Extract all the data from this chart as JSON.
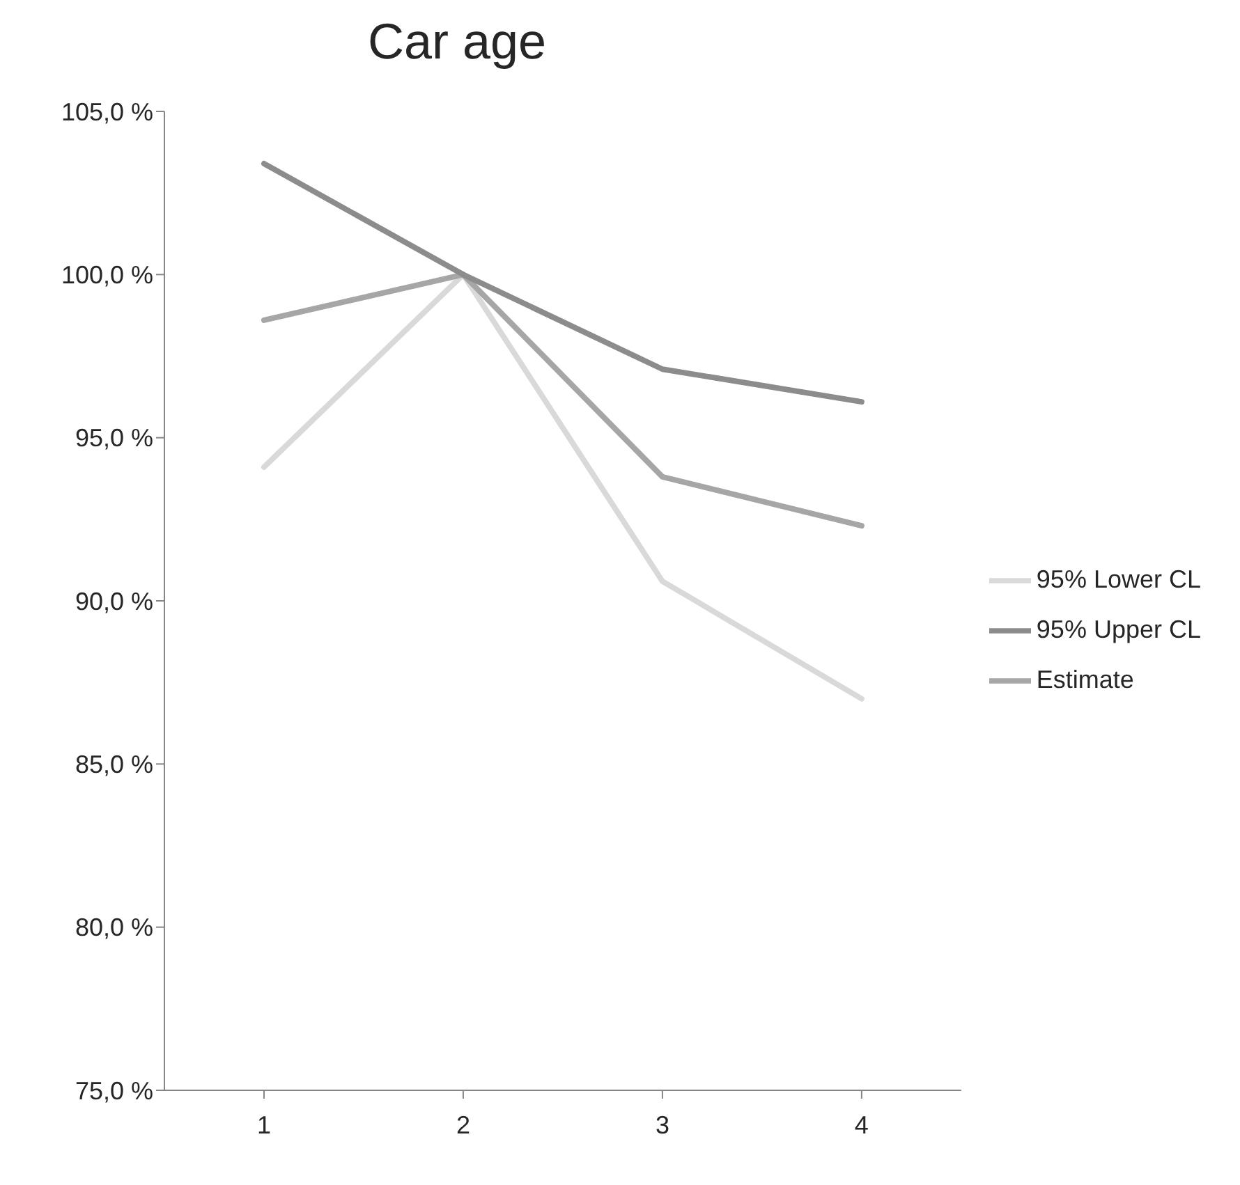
{
  "chart_data": {
    "type": "line",
    "title": "Car age",
    "categories": [
      "1",
      "2",
      "3",
      "4"
    ],
    "series": [
      {
        "name": "95% Lower CL",
        "color": "#d9d9d9",
        "values": [
          94.1,
          100.0,
          90.6,
          87.0
        ]
      },
      {
        "name": "Estimate",
        "color": "#a6a6a6",
        "values": [
          98.6,
          100.0,
          93.8,
          92.3
        ]
      },
      {
        "name": "95% Upper CL",
        "color": "#8c8c8c",
        "values": [
          103.4,
          100.0,
          97.1,
          96.1
        ]
      }
    ],
    "ylim": [
      75,
      105
    ],
    "yticks": [
      {
        "value": 75,
        "label": "75,0 %"
      },
      {
        "value": 80,
        "label": "80,0 %"
      },
      {
        "value": 85,
        "label": "85,0 %"
      },
      {
        "value": 90,
        "label": "90,0 %"
      },
      {
        "value": 95,
        "label": "95,0 %"
      },
      {
        "value": 100,
        "label": "100,0 %"
      },
      {
        "value": 105,
        "label": "105,0 %"
      }
    ],
    "grid": false,
    "legend": "right",
    "marker": "none",
    "line_style": "solid"
  }
}
